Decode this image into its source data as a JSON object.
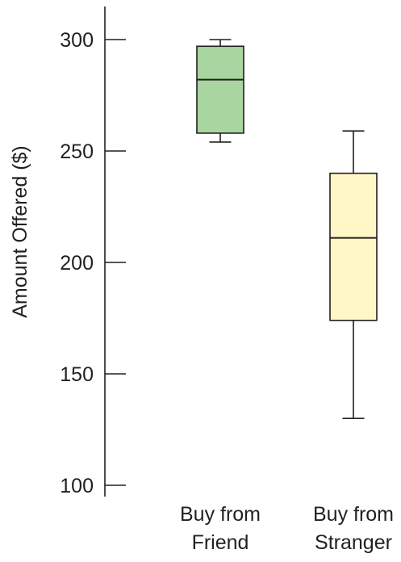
{
  "chart_data": {
    "type": "box",
    "title": "",
    "xlabel": "",
    "ylabel": "Amount Offered ($)",
    "ylim": [
      100,
      315
    ],
    "yticks": [
      100,
      150,
      200,
      250,
      300
    ],
    "ytick_labels": [
      "100",
      "150",
      "200",
      "250",
      "300"
    ],
    "grid": false,
    "legend": "none",
    "categories": [
      [
        "Buy from",
        "Friend"
      ],
      [
        "Buy from",
        "Stranger"
      ]
    ],
    "series": [
      {
        "whisker_low": 254,
        "q1": 258,
        "median": 282,
        "q3": 297,
        "whisker_high": 300,
        "color": "#a8d5a0"
      },
      {
        "whisker_low": 130,
        "q1": 174,
        "median": 211,
        "q3": 240,
        "whisker_high": 259,
        "color": "#fff8c6"
      }
    ],
    "stroke_color": "#231f20"
  }
}
